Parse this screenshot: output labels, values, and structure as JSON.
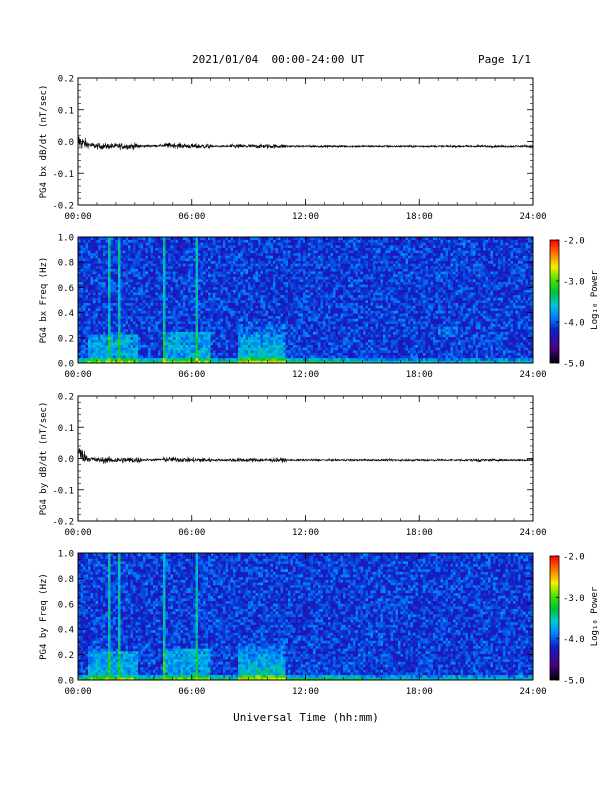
{
  "header": {
    "title": "2021/01/04  00:00-24:00 UT",
    "page": "Page 1/1"
  },
  "x_axis": {
    "label": "Universal Time (hh:mm)",
    "ticks": [
      "00:00",
      "06:00",
      "12:00",
      "18:00",
      "24:00"
    ]
  },
  "colorbar": {
    "label": "Log₁₀ Power",
    "ticks": [
      "-2.0",
      "-3.0",
      "-4.0",
      "-5.0"
    ],
    "range": [
      -5.0,
      -2.0
    ]
  },
  "chart_data": [
    {
      "type": "line",
      "ylabel": "PG4 bx dB/dt (nT/sec)",
      "ylim": [
        -0.2,
        0.2
      ],
      "yticks": [
        "0.2",
        "0.1",
        "0.0",
        "-0.1",
        "-0.2"
      ],
      "xlim": [
        "00:00",
        "24:00"
      ],
      "series": [
        {
          "x": [
            "00:00",
            "00:30",
            "01:00",
            "02:00",
            "03:00",
            "05:00",
            "06:00",
            "08:00",
            "10:00",
            "12:00",
            "18:00",
            "21:00",
            "24:00"
          ],
          "y": [
            0.0,
            -0.01,
            -0.015,
            -0.015,
            -0.015,
            -0.012,
            -0.015,
            -0.015,
            -0.015,
            -0.015,
            -0.015,
            -0.015,
            -0.015
          ]
        }
      ]
    },
    {
      "type": "heatmap",
      "ylabel": "PG4 bx Freq (Hz)",
      "ylim": [
        0.0,
        1.0
      ],
      "yticks": [
        "1.0",
        "0.8",
        "0.6",
        "0.4",
        "0.2",
        "0.0"
      ],
      "xlim": [
        "00:00",
        "24:00"
      ],
      "zlim": [
        -5.0,
        -2.0
      ]
    },
    {
      "type": "line",
      "ylabel": "PG4 by dB/dt (nT/sec)",
      "ylim": [
        -0.2,
        0.2
      ],
      "yticks": [
        "0.2",
        "0.1",
        "0.0",
        "-0.1",
        "-0.2"
      ],
      "xlim": [
        "00:00",
        "24:00"
      ],
      "series": [
        {
          "x": [
            "00:00",
            "00:30",
            "01:00",
            "02:00",
            "03:00",
            "05:00",
            "06:00",
            "08:00",
            "10:00",
            "12:00",
            "18:00",
            "21:00",
            "24:00"
          ],
          "y": [
            0.02,
            0.0,
            -0.005,
            -0.005,
            -0.005,
            -0.003,
            -0.005,
            -0.005,
            -0.005,
            -0.005,
            -0.005,
            -0.005,
            -0.005
          ]
        }
      ]
    },
    {
      "type": "heatmap",
      "ylabel": "PG4 by Freq (Hz)",
      "ylim": [
        0.0,
        1.0
      ],
      "yticks": [
        "1.0",
        "0.8",
        "0.6",
        "0.4",
        "0.2",
        "0.0"
      ],
      "xlim": [
        "00:00",
        "24:00"
      ],
      "zlim": [
        -5.0,
        -2.0
      ]
    }
  ]
}
